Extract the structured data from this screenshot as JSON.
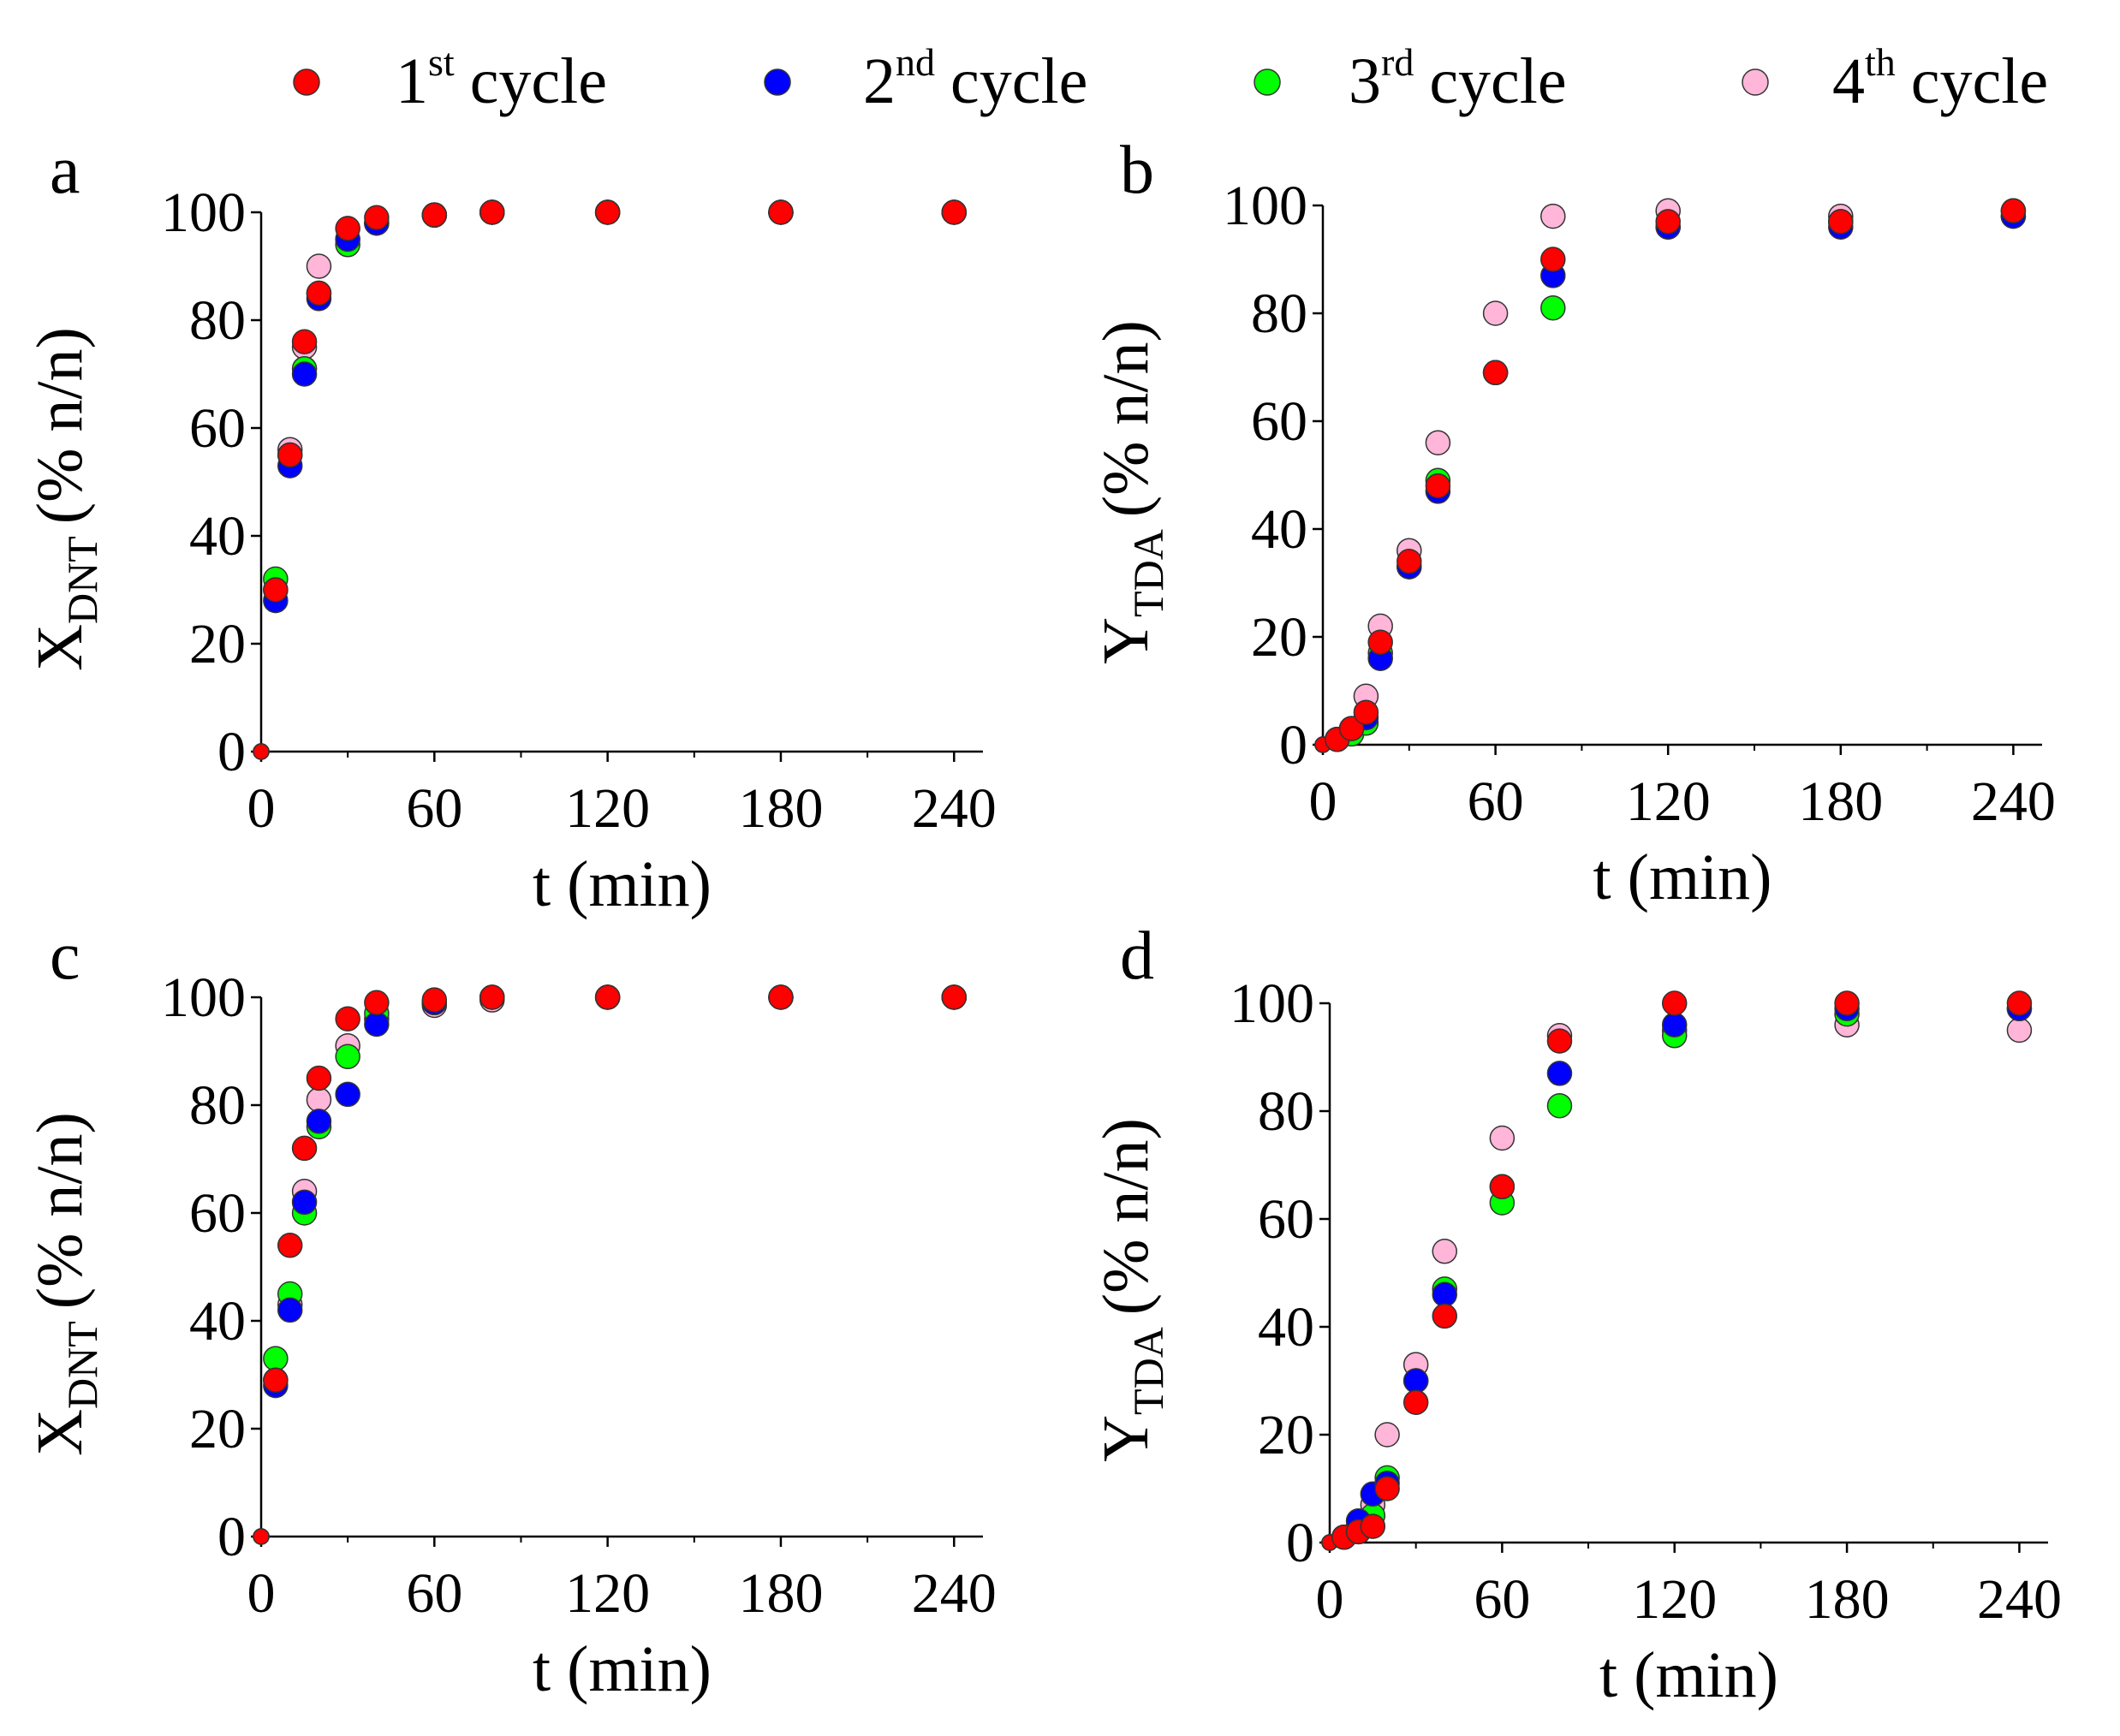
{
  "legend": {
    "items": [
      {
        "base": "1",
        "sup": "st",
        "label": "cycle",
        "color": "#ff0000"
      },
      {
        "base": "2",
        "sup": "nd",
        "label": "cycle",
        "color": "#0000ff"
      },
      {
        "base": "3",
        "sup": "rd",
        "label": "cycle",
        "color": "#00ff00"
      },
      {
        "base": "4",
        "sup": "th",
        "label": "cycle",
        "color": "#ffb6d9"
      }
    ]
  },
  "chart_data": [
    {
      "panel": "a",
      "type": "scatter",
      "xlabel": "t (min)",
      "ylabel_main": "X",
      "ylabel_sub": "DNT",
      "ylabel_rest": "(% n/n)",
      "xlim": [
        0,
        250
      ],
      "ylim": [
        0,
        100
      ],
      "xticks": [
        "0",
        "60",
        "120",
        "180",
        "240"
      ],
      "yticks": [
        "0",
        "20",
        "40",
        "60",
        "80",
        "100"
      ],
      "series": [
        {
          "name": "1st cycle",
          "x": [
            0,
            5,
            10,
            15,
            20,
            30,
            40,
            60,
            80,
            120,
            180,
            240
          ],
          "y": [
            0,
            30,
            55,
            76,
            85,
            97,
            99,
            99.5,
            100,
            100,
            100,
            100
          ]
        },
        {
          "name": "2nd cycle",
          "x": [
            0,
            5,
            10,
            15,
            20,
            30,
            40,
            60,
            80,
            120,
            180,
            240
          ],
          "y": [
            0,
            28,
            53,
            70,
            84,
            95,
            98,
            99.5,
            100,
            100,
            100,
            100
          ]
        },
        {
          "name": "3rd cycle",
          "x": [
            0,
            5,
            10,
            15,
            20,
            30,
            40,
            60,
            80,
            120,
            180,
            240
          ],
          "y": [
            0,
            32,
            55,
            71,
            85,
            94,
            98,
            99.5,
            100,
            100,
            100,
            100
          ]
        },
        {
          "name": "4th cycle",
          "x": [
            0,
            5,
            10,
            15,
            20,
            30,
            40,
            60,
            80,
            120,
            180,
            240
          ],
          "y": [
            0,
            30,
            56,
            75,
            90,
            95,
            98,
            99.5,
            100,
            100,
            100,
            100
          ]
        }
      ]
    },
    {
      "panel": "b",
      "type": "scatter",
      "xlabel": "t (min)",
      "ylabel_main": "Y",
      "ylabel_sub": "TDA",
      "ylabel_rest": "(% n/n)",
      "xlim": [
        0,
        250
      ],
      "ylim": [
        0,
        100
      ],
      "xticks": [
        "0",
        "60",
        "120",
        "180",
        "240"
      ],
      "yticks": [
        "0",
        "20",
        "40",
        "60",
        "80",
        "100"
      ],
      "series": [
        {
          "name": "1st cycle",
          "x": [
            0,
            5,
            10,
            15,
            20,
            30,
            40,
            60,
            80,
            120,
            180,
            240
          ],
          "y": [
            0,
            1,
            3,
            6,
            19,
            34,
            48,
            69,
            90,
            97,
            97,
            99
          ]
        },
        {
          "name": "2nd cycle",
          "x": [
            0,
            5,
            10,
            15,
            20,
            30,
            40,
            60,
            80,
            120,
            180,
            240
          ],
          "y": [
            0,
            1,
            3,
            5,
            16,
            33,
            47,
            69,
            87,
            96,
            96,
            98
          ]
        },
        {
          "name": "3rd cycle",
          "x": [
            0,
            5,
            10,
            15,
            20,
            30,
            40,
            60,
            80,
            120,
            180,
            240
          ],
          "y": [
            0,
            1,
            2,
            4,
            17,
            33,
            49,
            69,
            81,
            96,
            97,
            99
          ]
        },
        {
          "name": "4th cycle",
          "x": [
            0,
            5,
            10,
            15,
            20,
            30,
            40,
            60,
            80,
            120,
            180,
            240
          ],
          "y": [
            0,
            1,
            3,
            9,
            22,
            36,
            56,
            80,
            98,
            99,
            98,
            98
          ]
        }
      ]
    },
    {
      "panel": "c",
      "type": "scatter",
      "xlabel": "t (min)",
      "ylabel_main": "X",
      "ylabel_sub": "DNT",
      "ylabel_rest": "(% n/n)",
      "xlim": [
        0,
        250
      ],
      "ylim": [
        0,
        100
      ],
      "xticks": [
        "0",
        "60",
        "120",
        "180",
        "240"
      ],
      "yticks": [
        "0",
        "20",
        "40",
        "60",
        "80",
        "100"
      ],
      "series": [
        {
          "name": "1st cycle",
          "x": [
            0,
            5,
            10,
            15,
            20,
            30,
            40,
            60,
            80,
            120,
            180,
            240
          ],
          "y": [
            0,
            29,
            54,
            72,
            85,
            96,
            99,
            99.5,
            100,
            100,
            100,
            100
          ]
        },
        {
          "name": "2nd cycle",
          "x": [
            0,
            5,
            10,
            15,
            20,
            30,
            40,
            60,
            80,
            120,
            180,
            240
          ],
          "y": [
            0,
            28,
            42,
            62,
            77,
            82,
            95,
            99,
            100,
            100,
            100,
            100
          ]
        },
        {
          "name": "3rd cycle",
          "x": [
            0,
            5,
            10,
            15,
            20,
            30,
            40,
            60,
            80,
            120,
            180,
            240
          ],
          "y": [
            0,
            33,
            45,
            60,
            76,
            89,
            97,
            99,
            100,
            100,
            100,
            100
          ]
        },
        {
          "name": "4th cycle",
          "x": [
            0,
            5,
            10,
            15,
            20,
            30,
            40,
            60,
            80,
            120,
            180,
            240
          ],
          "y": [
            0,
            29,
            43,
            64,
            81,
            91,
            96,
            98.5,
            99.5,
            100,
            100,
            100
          ]
        }
      ]
    },
    {
      "panel": "d",
      "type": "scatter",
      "xlabel": "t (min)",
      "ylabel_main": "Y",
      "ylabel_sub": "TDA",
      "ylabel_rest": "(% n/n)",
      "xlim": [
        0,
        250
      ],
      "ylim": [
        0,
        100
      ],
      "xticks": [
        "0",
        "60",
        "120",
        "180",
        "240"
      ],
      "yticks": [
        "0",
        "20",
        "40",
        "60",
        "80",
        "100"
      ],
      "series": [
        {
          "name": "1st cycle",
          "x": [
            0,
            5,
            10,
            15,
            20,
            30,
            40,
            60,
            80,
            120,
            180,
            240
          ],
          "y": [
            0,
            1,
            2,
            3,
            10,
            26,
            42,
            66,
            93,
            100,
            100,
            100
          ]
        },
        {
          "name": "2nd cycle",
          "x": [
            0,
            5,
            10,
            15,
            20,
            30,
            40,
            60,
            80,
            120,
            180,
            240
          ],
          "y": [
            0,
            1,
            4,
            9,
            11,
            30,
            46,
            66,
            87,
            96,
            99,
            99
          ]
        },
        {
          "name": "3rd cycle",
          "x": [
            0,
            5,
            10,
            15,
            20,
            30,
            40,
            60,
            80,
            120,
            180,
            240
          ],
          "y": [
            0,
            1,
            3,
            5,
            12,
            30,
            47,
            63,
            81,
            94,
            98,
            99
          ]
        },
        {
          "name": "4th cycle",
          "x": [
            0,
            5,
            10,
            15,
            20,
            30,
            40,
            60,
            80,
            120,
            180,
            240
          ],
          "y": [
            0,
            1,
            2,
            7,
            20,
            33,
            54,
            75,
            94,
            95,
            96,
            95
          ]
        }
      ]
    }
  ]
}
